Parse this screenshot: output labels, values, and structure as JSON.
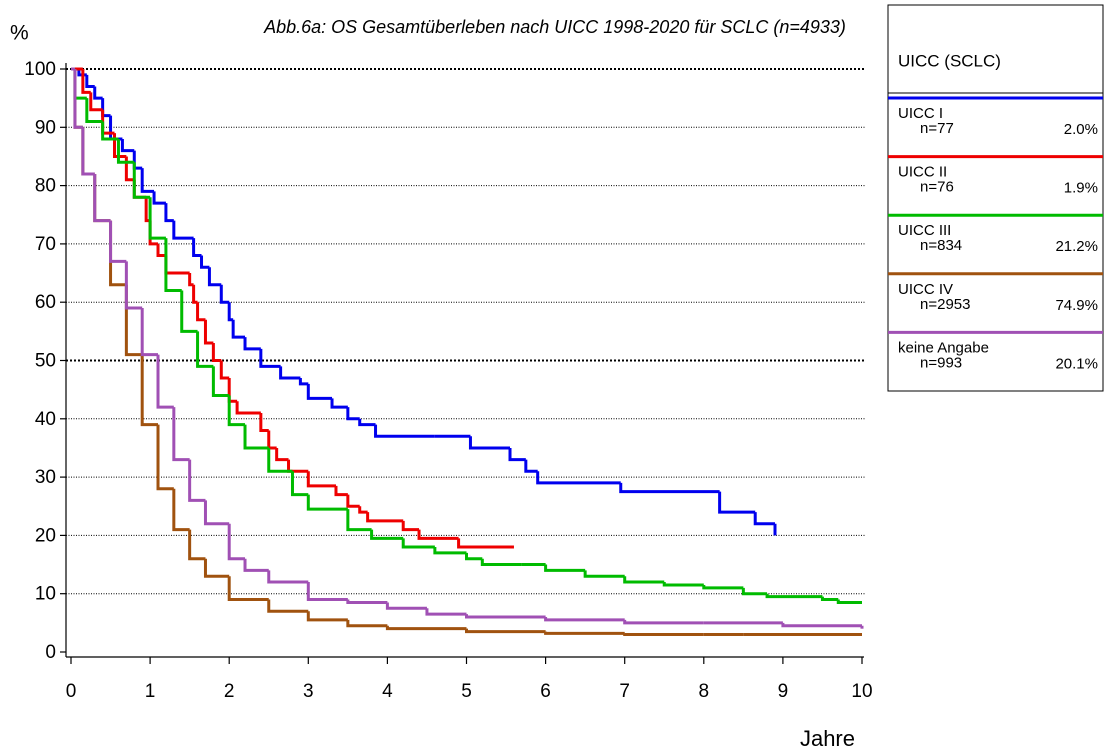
{
  "chart_data": {
    "type": "step",
    "title": "Abb.6a: OS Gesamtüberleben nach UICC 1998-2020 für SCLC (n=4933)",
    "y_label": "%",
    "x_label": "Jahre",
    "xlim": [
      0,
      10
    ],
    "ylim": [
      0,
      100
    ],
    "xticks": [
      0,
      1,
      2,
      3,
      4,
      5,
      6,
      7,
      8,
      9,
      10
    ],
    "yticks": [
      0,
      10,
      20,
      30,
      40,
      50,
      60,
      70,
      80,
      90,
      100
    ],
    "grid": true,
    "emphasized_gridlines": [
      50,
      100
    ],
    "legend_title": "UICC (SCLC)",
    "legend_position": "right",
    "series": [
      {
        "name": "UICC I",
        "count": "n=77",
        "share": "2.0%",
        "color": "#0000ee",
        "x": [
          0,
          0.1,
          0.2,
          0.3,
          0.4,
          0.5,
          0.65,
          0.8,
          0.9,
          1.05,
          1.2,
          1.3,
          1.55,
          1.65,
          1.75,
          1.9,
          2.0,
          2.05,
          2.2,
          2.4,
          2.65,
          2.9,
          3.0,
          3.3,
          3.5,
          3.65,
          3.85,
          4.6,
          5.05,
          5.55,
          5.75,
          5.9,
          6.95,
          8.2,
          8.65,
          8.9
        ],
        "values": [
          100,
          99,
          97,
          95,
          92,
          88,
          86,
          83,
          79,
          77,
          74,
          71,
          68,
          66,
          63,
          60,
          57,
          54,
          52,
          49,
          47,
          46,
          43.5,
          42,
          40,
          39,
          37,
          37,
          35,
          33,
          31,
          29,
          27.5,
          24,
          22,
          20
        ]
      },
      {
        "name": "UICC II",
        "count": "n=76",
        "share": "1.9%",
        "color": "#ee0000",
        "x": [
          0,
          0.15,
          0.25,
          0.4,
          0.55,
          0.7,
          0.8,
          0.95,
          1.0,
          1.1,
          1.2,
          1.5,
          1.55,
          1.6,
          1.7,
          1.8,
          1.9,
          2.0,
          2.1,
          2.4,
          2.5,
          2.6,
          2.75,
          3.0,
          3.35,
          3.5,
          3.65,
          3.75,
          4.2,
          4.4,
          4.9,
          5.6
        ],
        "values": [
          100,
          96,
          93,
          89,
          85,
          81,
          78,
          74,
          70,
          68,
          65,
          63,
          60,
          57,
          53,
          50,
          47,
          43,
          41,
          38,
          35,
          33,
          31,
          28.5,
          27,
          25,
          24,
          22.5,
          21,
          19.5,
          18,
          18
        ]
      },
      {
        "name": "UICC III",
        "count": "n=834",
        "share": "21.2%",
        "color": "#00bb00",
        "x": [
          0,
          0.05,
          0.2,
          0.4,
          0.6,
          0.8,
          1.0,
          1.2,
          1.4,
          1.6,
          1.8,
          2.0,
          2.2,
          2.5,
          2.8,
          3.0,
          3.5,
          3.8,
          4.2,
          4.6,
          5.0,
          5.2,
          5.7,
          6.0,
          6.5,
          7.0,
          7.5,
          8.0,
          8.5,
          8.8,
          9.5,
          9.7,
          10
        ],
        "values": [
          100,
          95,
          91,
          88,
          84,
          78,
          71,
          62,
          55,
          49,
          44,
          39,
          35,
          31,
          27,
          24.5,
          21,
          19.5,
          18,
          17,
          16,
          15,
          15,
          14,
          13,
          12,
          11.5,
          11,
          10,
          9.5,
          9,
          8.5,
          8.5
        ]
      },
      {
        "name": "UICC IV",
        "count": "n=2953",
        "share": "74.9%",
        "color": "#a0520f",
        "x": [
          0,
          0.05,
          0.15,
          0.3,
          0.5,
          0.7,
          0.9,
          1.1,
          1.3,
          1.5,
          1.7,
          2.0,
          2.5,
          3.0,
          3.5,
          4.0,
          5.0,
          6.0,
          7.0,
          8.0,
          8.5,
          10
        ],
        "values": [
          100,
          90,
          82,
          74,
          63,
          51,
          39,
          28,
          21,
          16,
          13,
          9,
          7,
          5.5,
          4.5,
          4,
          3.5,
          3.2,
          3,
          3,
          3,
          3
        ]
      },
      {
        "name": "keine Angabe",
        "count": "n=993",
        "share": "20.1%",
        "color": "#a050b4",
        "x": [
          0,
          0.05,
          0.15,
          0.3,
          0.5,
          0.7,
          0.9,
          1.1,
          1.3,
          1.5,
          1.7,
          2.0,
          2.2,
          2.5,
          3.0,
          3.5,
          4.0,
          4.5,
          5.0,
          6.0,
          7.0,
          8.0,
          9.0,
          10
        ],
        "values": [
          100,
          90,
          82,
          74,
          67,
          59,
          51,
          42,
          33,
          26,
          22,
          16,
          14,
          12,
          9,
          8.5,
          7.5,
          6.5,
          6,
          5.5,
          5,
          5,
          4.5,
          4
        ]
      }
    ]
  }
}
